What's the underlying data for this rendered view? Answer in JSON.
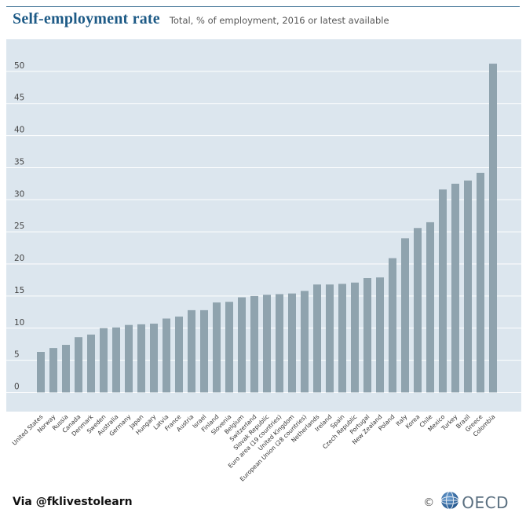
{
  "header": {
    "title": "Self-employment rate",
    "subtitle": "Total, % of employment, 2016 or latest available"
  },
  "footer": {
    "via": "Via @fklivestolearn",
    "copyright": "©",
    "brand": "OECD"
  },
  "colors": {
    "plot_background": "#dce6ee",
    "bar": "#8fa3ae",
    "title": "#1d5a86",
    "grid": "#ffffff"
  },
  "chart_data": {
    "type": "bar",
    "title": "Self-employment rate",
    "subtitle": "Total, % of employment, 2016 or latest available",
    "xlabel": "",
    "ylabel": "",
    "ylim": [
      -3,
      55
    ],
    "yticks": [
      0,
      5,
      10,
      15,
      20,
      25,
      30,
      35,
      40,
      45,
      50
    ],
    "grid": true,
    "categories": [
      "United States",
      "Norway",
      "Russia",
      "Canada",
      "Denmark",
      "Sweden",
      "Australia",
      "Germany",
      "Japan",
      "Hungary",
      "Latvia",
      "France",
      "Austria",
      "Israel",
      "Finland",
      "Slovenia",
      "Belgium",
      "Switzerland",
      "Slovak Republic",
      "Euro area (19 countries)",
      "United Kingdom",
      "European Union (28 countries)",
      "Netherlands",
      "Ireland",
      "Spain",
      "Czech Republic",
      "Portugal",
      "New Zealand",
      "Poland",
      "Italy",
      "Korea",
      "Chile",
      "Mexico",
      "Turkey",
      "Brazil",
      "Greece",
      "Colombia"
    ],
    "values": [
      6.3,
      6.9,
      7.4,
      8.6,
      9.0,
      10.0,
      10.1,
      10.5,
      10.6,
      10.7,
      11.5,
      11.8,
      12.8,
      12.8,
      14.0,
      14.1,
      14.8,
      15.0,
      15.2,
      15.3,
      15.4,
      15.8,
      16.8,
      16.8,
      16.9,
      17.1,
      17.8,
      17.9,
      20.9,
      24.0,
      25.6,
      26.5,
      31.6,
      32.5,
      33.0,
      34.2,
      51.2
    ]
  }
}
